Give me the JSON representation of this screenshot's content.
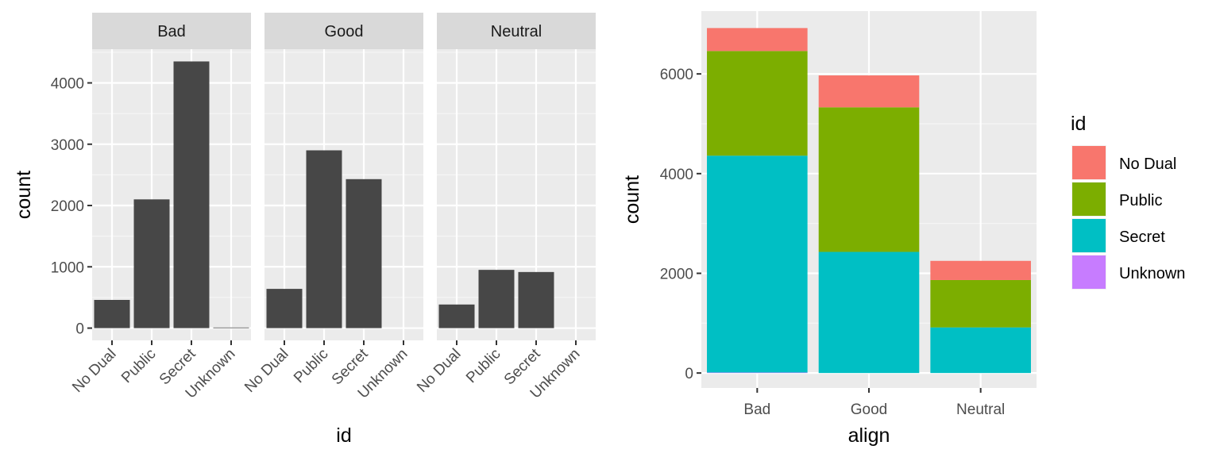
{
  "chart_data": [
    {
      "type": "bar",
      "facet_var": "align",
      "facets": [
        {
          "label": "Bad",
          "values": [
            460,
            2100,
            4350,
            10
          ]
        },
        {
          "label": "Good",
          "values": [
            640,
            2900,
            2430,
            0
          ]
        },
        {
          "label": "Neutral",
          "values": [
            385,
            950,
            915,
            0
          ]
        }
      ],
      "categories": [
        "No Dual",
        "Public",
        "Secret",
        "Unknown"
      ],
      "xlabel": "id",
      "ylabel": "count",
      "yticks": [
        0,
        1000,
        2000,
        3000,
        4000
      ],
      "ylim": [
        -200,
        4550
      ],
      "bar_color": "#474747",
      "grid": true
    },
    {
      "type": "bar",
      "stacked": true,
      "categories": [
        "Bad",
        "Good",
        "Neutral"
      ],
      "series": [
        {
          "name": "No Dual",
          "color": "#F8766D",
          "values": [
            460,
            640,
            385
          ]
        },
        {
          "name": "Public",
          "color": "#7CAE00",
          "values": [
            2100,
            2900,
            950
          ]
        },
        {
          "name": "Secret",
          "color": "#00BFC4",
          "values": [
            4350,
            2430,
            915
          ]
        },
        {
          "name": "Unknown",
          "color": "#C77CFF",
          "values": [
            10,
            0,
            0
          ]
        }
      ],
      "xlabel": "align",
      "ylabel": "count",
      "yticks": [
        0,
        2000,
        4000,
        6000
      ],
      "ylim": [
        -300,
        7260
      ],
      "legend_title": "id",
      "legend_position": "right",
      "grid": true
    }
  ]
}
